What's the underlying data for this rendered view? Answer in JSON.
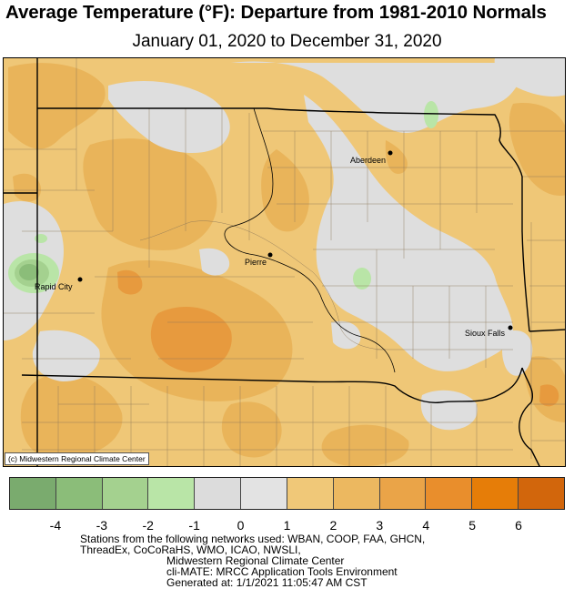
{
  "title": "Average Temperature (°F): Departure from 1981-2010 Normals",
  "subtitle": "January 01, 2020 to December 31, 2020",
  "credit": "(c) Midwestern Regional Climate Center",
  "cities": [
    {
      "name": "Aberdeen"
    },
    {
      "name": "Pierre"
    },
    {
      "name": "Rapid City"
    },
    {
      "name": "Sioux Falls"
    }
  ],
  "legend": {
    "colors": [
      "#7aab6e",
      "#8bbd79",
      "#a4d18f",
      "#b9e5a7",
      "#dcdcdc",
      "#e3e3e3",
      "#f0c878",
      "#ecb860",
      "#eaa448",
      "#e98e2c",
      "#e67d08",
      "#d2660c"
    ],
    "tick_labels": [
      "-4",
      "-3",
      "-2",
      "-1",
      "0",
      "1",
      "2",
      "3",
      "4",
      "5",
      "6"
    ]
  },
  "footer": {
    "line1": "Stations from the following networks used: WBAN, COOP, FAA, GHCN,",
    "line2": "ThreadEx, CoCoRaHS, WMO, ICAO, NWSLI,",
    "line3": "Midwestern Regional Climate Center",
    "line4": "cli-MATE: MRCC Application Tools Environment",
    "line5": "Generated at: 1/1/2021 11:05:47 AM CST"
  }
}
